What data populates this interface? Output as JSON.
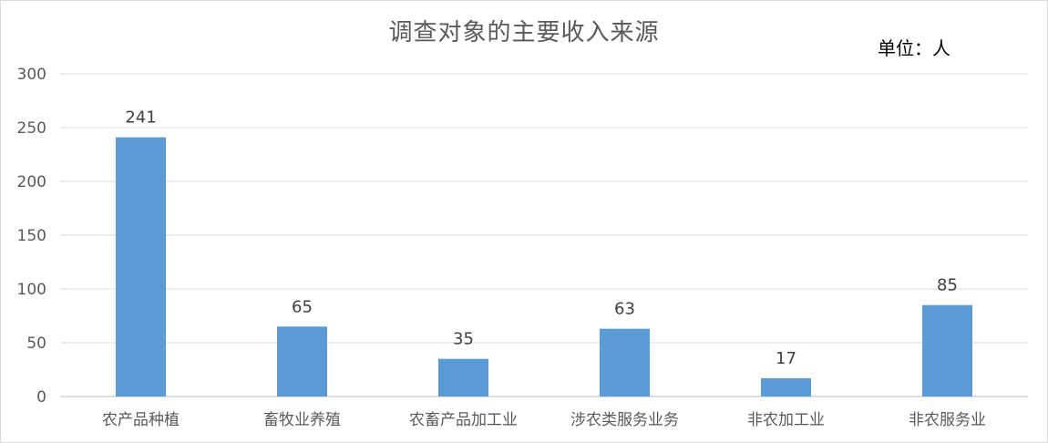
{
  "chart_data": {
    "type": "bar",
    "title": "调查对象的主要收入来源",
    "unit_label": "单位：人",
    "categories": [
      "农产品种植",
      "畜牧业养殖",
      "农畜产品加工业",
      "涉农类服务业务",
      "非农加工业",
      "非农服务业"
    ],
    "values": [
      241,
      65,
      35,
      63,
      17,
      85
    ],
    "ylim": [
      0,
      300
    ],
    "yticks": [
      0,
      50,
      100,
      150,
      200,
      250,
      300
    ],
    "xlabel": "",
    "ylabel": "",
    "grid": true,
    "legend": "none",
    "bar_color": "#5b9bd5",
    "grid_color": "#d9d9d9"
  }
}
